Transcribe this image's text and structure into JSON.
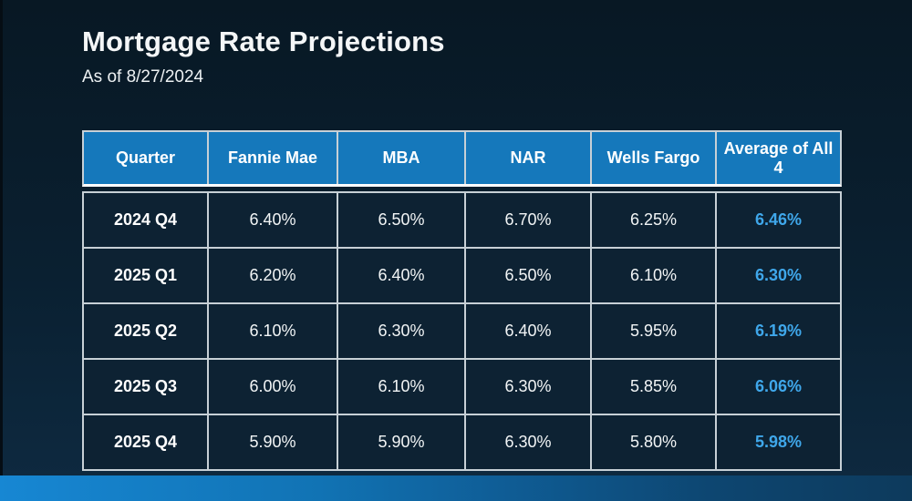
{
  "slide": {
    "title": "Mortgage Rate Projections",
    "subtitle": "As of 8/27/2024"
  },
  "table": {
    "columns": [
      "Quarter",
      "Fannie Mae",
      "MBA",
      "NAR",
      "Wells Fargo",
      "Average of All 4"
    ],
    "rows": [
      {
        "quarter": "2024 Q4",
        "values": [
          "6.40%",
          "6.50%",
          "6.70%",
          "6.25%"
        ],
        "average": "6.46%"
      },
      {
        "quarter": "2025 Q1",
        "values": [
          "6.20%",
          "6.40%",
          "6.50%",
          "6.10%"
        ],
        "average": "6.30%"
      },
      {
        "quarter": "2025 Q2",
        "values": [
          "6.10%",
          "6.30%",
          "6.40%",
          "5.95%"
        ],
        "average": "6.19%"
      },
      {
        "quarter": "2025 Q3",
        "values": [
          "6.00%",
          "6.10%",
          "6.30%",
          "5.85%"
        ],
        "average": "6.06%"
      },
      {
        "quarter": "2025 Q4",
        "values": [
          "5.90%",
          "5.90%",
          "6.30%",
          "5.80%"
        ],
        "average": "5.98%"
      }
    ]
  },
  "colors": {
    "header_bg": "#1578bb",
    "cell_bg": "#0d2233",
    "average_value_text": "#3fa7ea",
    "grid_line": "#c7d0d6",
    "accent_bar_start": "#1787d3",
    "accent_bar_end": "#0d3a5c"
  }
}
